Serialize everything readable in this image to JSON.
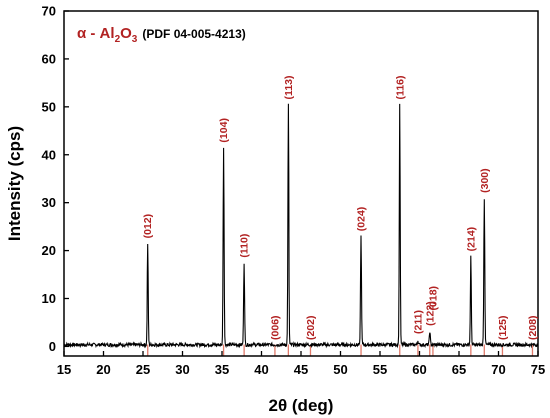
{
  "chart_data": {
    "type": "line",
    "xlabel": "2θ (deg)",
    "ylabel": "Intensity (cps)",
    "xlim": [
      15,
      75
    ],
    "ylim": [
      -2,
      70
    ],
    "x_ticks": [
      15,
      20,
      25,
      30,
      35,
      40,
      45,
      50,
      55,
      60,
      65,
      70,
      75
    ],
    "y_ticks": [
      0,
      10,
      20,
      30,
      40,
      50,
      60,
      70
    ],
    "legend": {
      "phase_alpha": "α - Al",
      "phase_sub1": "2",
      "phase_o": "O",
      "phase_sub2": "3",
      "pdf": "(PDF 04-005-4213)",
      "color": "#b22222"
    },
    "peaks": [
      {
        "hkl": "(012)",
        "x": 25.6,
        "y": 21.5
      },
      {
        "hkl": "(104)",
        "x": 35.2,
        "y": 41.5
      },
      {
        "hkl": "(110)",
        "x": 37.8,
        "y": 17.5
      },
      {
        "hkl": "(006)",
        "x": 41.7,
        "y": 0.3
      },
      {
        "hkl": "(113)",
        "x": 43.4,
        "y": 50.5
      },
      {
        "hkl": "(202)",
        "x": 46.2,
        "y": 0.3
      },
      {
        "hkl": "(024)",
        "x": 52.6,
        "y": 23.0
      },
      {
        "hkl": "(116)",
        "x": 57.5,
        "y": 50.5
      },
      {
        "hkl": "(211)",
        "x": 59.8,
        "y": 1.2
      },
      {
        "hkl": "(122)",
        "x": 61.3,
        "y": 3.2
      },
      {
        "hkl": "(018)",
        "x": 61.7,
        "y": 0.5
      },
      {
        "hkl": "(214)",
        "x": 66.5,
        "y": 18.8
      },
      {
        "hkl": "(300)",
        "x": 68.2,
        "y": 31.0
      },
      {
        "hkl": "(125)",
        "x": 70.5,
        "y": 0.3
      },
      {
        "hkl": "(208)",
        "x": 74.3,
        "y": 0.3
      }
    ],
    "colors": {
      "trace": "#000000",
      "reference": "#e07a6a",
      "labels": "#b22222"
    }
  }
}
